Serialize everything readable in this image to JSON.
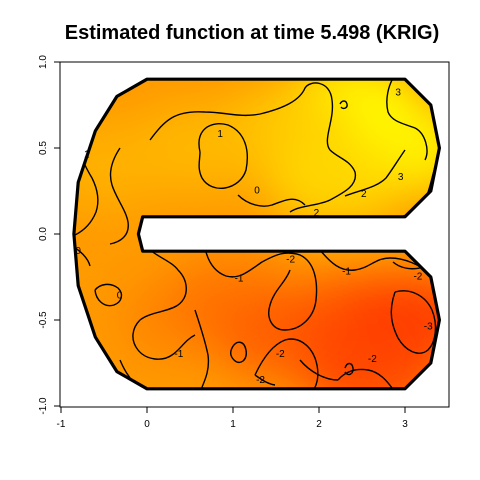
{
  "chart_data": {
    "type": "heatmap",
    "title": "Estimated function at time 5.498 (KRIG)",
    "xlabel": "",
    "ylabel": "",
    "xlim": [
      -1,
      3.5
    ],
    "ylim": [
      -1,
      1
    ],
    "x_ticks": [
      -1,
      0,
      1,
      2,
      3
    ],
    "y_ticks": [
      -1,
      -0.5,
      0,
      0.5,
      1
    ],
    "x_tick_labels": [
      "-1",
      "0",
      "1",
      "2",
      "3"
    ],
    "y_tick_labels": [
      "-1.0",
      "-0.5",
      "0.0",
      "0.5",
      "1.0"
    ],
    "grid": false,
    "legend": "none",
    "colors": {
      "high": "#ffff00",
      "mid": "#ff9a00",
      "low": "#ff3000",
      "contour": "#000000",
      "boundary": "#000000"
    },
    "domain_boundary": {
      "shape": "C-shaped horseshoe",
      "points": [
        [
          3.0,
          0.9
        ],
        [
          0.0,
          0.9
        ],
        [
          -0.35,
          0.8
        ],
        [
          -0.6,
          0.6
        ],
        [
          -0.8,
          0.3
        ],
        [
          -0.85,
          0.0
        ],
        [
          -0.8,
          -0.3
        ],
        [
          -0.6,
          -0.6
        ],
        [
          -0.35,
          -0.8
        ],
        [
          0.0,
          -0.9
        ],
        [
          3.0,
          -0.9
        ],
        [
          3.3,
          -0.75
        ],
        [
          3.4,
          -0.5
        ],
        [
          3.3,
          -0.25
        ],
        [
          3.0,
          -0.1
        ],
        [
          -0.05,
          -0.1
        ],
        [
          -0.1,
          0.0
        ],
        [
          -0.05,
          0.1
        ],
        [
          3.0,
          0.1
        ],
        [
          3.3,
          0.25
        ],
        [
          3.4,
          0.5
        ],
        [
          3.3,
          0.75
        ]
      ]
    },
    "color_field_points": [
      {
        "x": 2.4,
        "y": 0.75,
        "value": 3.2
      },
      {
        "x": 3.0,
        "y": 0.5,
        "value": 3.0
      },
      {
        "x": 1.6,
        "y": 0.6,
        "value": 1.6
      },
      {
        "x": 0.6,
        "y": 0.5,
        "value": 1.0
      },
      {
        "x": -0.5,
        "y": 0.4,
        "value": 0.8
      },
      {
        "x": 2.2,
        "y": 0.3,
        "value": 2.0
      },
      {
        "x": -0.6,
        "y": -0.3,
        "value": 0.0
      },
      {
        "x": 0.4,
        "y": -0.5,
        "value": -0.6
      },
      {
        "x": 1.0,
        "y": -0.4,
        "value": -1.2
      },
      {
        "x": 1.6,
        "y": -0.6,
        "value": -1.8
      },
      {
        "x": 2.4,
        "y": -0.5,
        "value": -2.2
      },
      {
        "x": 3.1,
        "y": -0.5,
        "value": -3.0
      },
      {
        "x": 2.6,
        "y": -0.8,
        "value": -2.6
      }
    ],
    "contour_labels": [
      {
        "text": "3",
        "x": 2.92,
        "y": 0.82
      },
      {
        "text": "1",
        "x": 0.85,
        "y": 0.58
      },
      {
        "text": "1",
        "x": -0.7,
        "y": 0.46
      },
      {
        "text": "0",
        "x": 1.28,
        "y": 0.25
      },
      {
        "text": "2",
        "x": 1.97,
        "y": 0.12
      },
      {
        "text": "2",
        "x": 2.52,
        "y": 0.23
      },
      {
        "text": "3",
        "x": 2.95,
        "y": 0.33
      },
      {
        "text": "0",
        "x": -0.8,
        "y": -0.1
      },
      {
        "text": "0",
        "x": -0.32,
        "y": -0.36
      },
      {
        "text": "-2",
        "x": 1.67,
        "y": -0.15
      },
      {
        "text": "-1",
        "x": 2.32,
        "y": -0.22
      },
      {
        "text": "-2",
        "x": 3.15,
        "y": -0.25
      },
      {
        "text": "-1",
        "x": 1.07,
        "y": -0.26
      },
      {
        "text": "-1",
        "x": 0.37,
        "y": -0.7
      },
      {
        "text": "-2",
        "x": 1.55,
        "y": -0.7
      },
      {
        "text": "-2",
        "x": 1.32,
        "y": -0.85
      },
      {
        "text": "-2",
        "x": 2.62,
        "y": -0.73
      },
      {
        "text": "-3",
        "x": 3.27,
        "y": -0.54
      }
    ]
  }
}
